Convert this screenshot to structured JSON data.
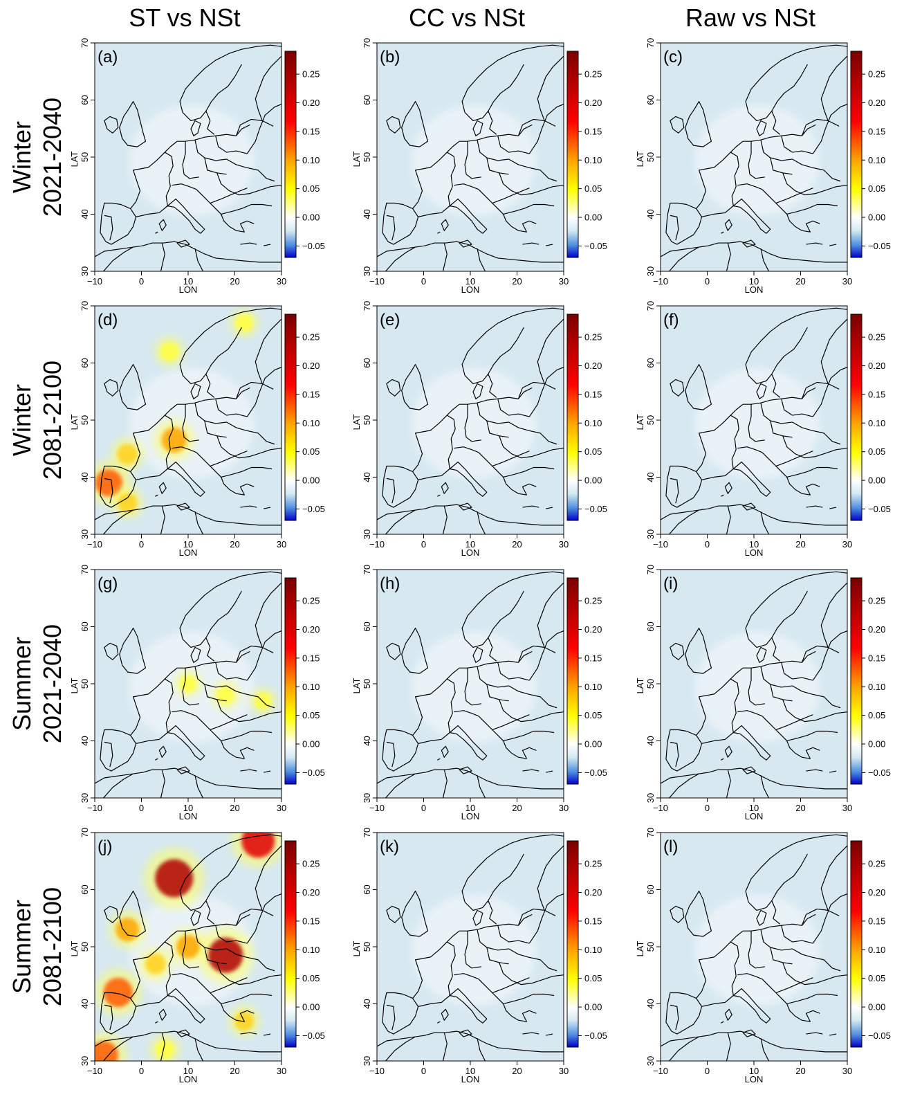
{
  "columns": [
    "ST vs NSt",
    "CC vs NSt",
    "Raw vs NSt"
  ],
  "rows": [
    {
      "season": "Winter",
      "period": "2021-2040"
    },
    {
      "season": "Winter",
      "period": "2081-2100"
    },
    {
      "season": "Summer",
      "period": "2021-2040"
    },
    {
      "season": "Summer",
      "period": "2081-2100"
    }
  ],
  "panel_labels": [
    "(a)",
    "(b)",
    "(c)",
    "(d)",
    "(e)",
    "(f)",
    "(g)",
    "(h)",
    "(i)",
    "(j)",
    "(k)",
    "(l)"
  ],
  "axes": {
    "xlabel": "LON",
    "ylabel": "LAT",
    "xticks": [
      -10,
      0,
      10,
      20,
      30
    ],
    "yticks": [
      30,
      40,
      50,
      60,
      70
    ],
    "xlim": [
      -10,
      30
    ],
    "ylim": [
      30,
      70
    ]
  },
  "colorbar": {
    "range": [
      -0.07,
      0.29
    ],
    "ticks": [
      -0.05,
      0.0,
      0.05,
      0.1,
      0.15,
      0.2,
      0.25
    ],
    "tick_labels": [
      "−0.05",
      "0.00",
      "0.05",
      "0.10",
      "0.15",
      "0.20",
      "0.25"
    ],
    "colors": [
      "#0000cc",
      "#4f8fe0",
      "#d3e9f2",
      "#ffffff",
      "#ffff00",
      "#ffa500",
      "#ff0000",
      "#7a0000"
    ]
  },
  "background_color": "#d7e8f1",
  "anomaly_regions": {
    "d": [
      {
        "lon": -7,
        "lat": 39,
        "value": 0.14
      },
      {
        "lon": -3,
        "lat": 44,
        "value": 0.07
      },
      {
        "lon": 7,
        "lat": 46.5,
        "value": 0.12
      },
      {
        "lon": -3,
        "lat": 35.5,
        "value": 0.06
      },
      {
        "lon": 6,
        "lat": 62,
        "value": 0.05
      },
      {
        "lon": 22,
        "lat": 67,
        "value": 0.04
      }
    ],
    "g": [
      {
        "lon": 18,
        "lat": 48,
        "value": 0.04
      },
      {
        "lon": 10,
        "lat": 50,
        "value": 0.03
      },
      {
        "lon": 26,
        "lat": 47,
        "value": 0.03
      }
    ],
    "j": [
      {
        "lon": 18,
        "lat": 48.5,
        "value": 0.22
      },
      {
        "lon": 10,
        "lat": 50,
        "value": 0.1
      },
      {
        "lon": 7,
        "lat": 62,
        "value": 0.25
      },
      {
        "lon": 25,
        "lat": 68.5,
        "value": 0.2
      },
      {
        "lon": -5,
        "lat": 42,
        "value": 0.16
      },
      {
        "lon": -3,
        "lat": 53,
        "value": 0.1
      },
      {
        "lon": 3,
        "lat": 47,
        "value": 0.07
      },
      {
        "lon": -8,
        "lat": 31,
        "value": 0.15
      },
      {
        "lon": 22,
        "lat": 37,
        "value": 0.06
      },
      {
        "lon": 5,
        "lat": 32,
        "value": 0.05
      }
    ]
  }
}
